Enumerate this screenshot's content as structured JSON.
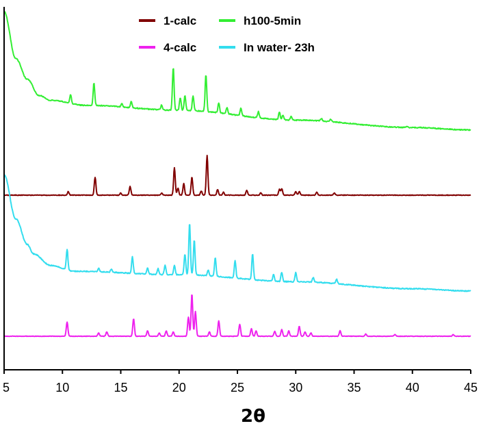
{
  "chart_data": {
    "type": "line",
    "xlabel": "2θ",
    "ylabel": "",
    "xlim": [
      5,
      45
    ],
    "x_ticks": [
      "5",
      "10",
      "15",
      "20",
      "25",
      "30",
      "35",
      "40",
      "45"
    ],
    "y_ticks_shown": false,
    "grid": false,
    "legend_placement": "top-center",
    "legend": [
      {
        "name": "1-calc",
        "color": "#800000"
      },
      {
        "name": "h100-5min",
        "color": "#33ee33"
      },
      {
        "name": "4-calc",
        "color": "#ee22ee"
      },
      {
        "name": "In water- 23h",
        "color": "#33ddee"
      }
    ],
    "series": [
      {
        "name": "h100-5min",
        "color": "#33ee33",
        "note": "offset stacked pattern, top",
        "baseline": [
          [
            5,
            1.0
          ],
          [
            6,
            0.62
          ],
          [
            7,
            0.45
          ],
          [
            8,
            0.32
          ],
          [
            9,
            0.28
          ],
          [
            12,
            0.24
          ],
          [
            20,
            0.2
          ],
          [
            30,
            0.12
          ],
          [
            40,
            0.06
          ],
          [
            45,
            0.04
          ]
        ],
        "peaks": [
          [
            10.7,
            0.07
          ],
          [
            12.7,
            0.18
          ],
          [
            15.1,
            0.03
          ],
          [
            15.9,
            0.05
          ],
          [
            18.5,
            0.04
          ],
          [
            19.5,
            0.35
          ],
          [
            20.1,
            0.1
          ],
          [
            20.5,
            0.12
          ],
          [
            21.2,
            0.12
          ],
          [
            22.3,
            0.3
          ],
          [
            23.4,
            0.08
          ],
          [
            24.1,
            0.05
          ],
          [
            25.3,
            0.06
          ],
          [
            26.8,
            0.05
          ],
          [
            28.6,
            0.06
          ],
          [
            28.9,
            0.04
          ],
          [
            29.6,
            0.03
          ],
          [
            32.2,
            0.02
          ],
          [
            33.0,
            0.02
          ],
          [
            39.5,
            0.01
          ]
        ]
      },
      {
        "name": "1-calc",
        "color": "#800000",
        "note": "calculated pattern",
        "baseline": [
          [
            5,
            0.0
          ],
          [
            45,
            0.0
          ]
        ],
        "peaks": [
          [
            10.5,
            0.05
          ],
          [
            12.8,
            0.25
          ],
          [
            15.0,
            0.03
          ],
          [
            15.8,
            0.12
          ],
          [
            18.5,
            0.03
          ],
          [
            19.6,
            0.38
          ],
          [
            19.9,
            0.1
          ],
          [
            20.4,
            0.16
          ],
          [
            21.1,
            0.25
          ],
          [
            21.9,
            0.06
          ],
          [
            22.4,
            0.55
          ],
          [
            23.3,
            0.08
          ],
          [
            23.8,
            0.04
          ],
          [
            25.8,
            0.07
          ],
          [
            27.0,
            0.03
          ],
          [
            28.6,
            0.08
          ],
          [
            28.8,
            0.09
          ],
          [
            30.0,
            0.05
          ],
          [
            30.3,
            0.05
          ],
          [
            31.8,
            0.04
          ],
          [
            33.3,
            0.03
          ]
        ]
      },
      {
        "name": "In water- 23h",
        "color": "#33ddee",
        "note": "offset stacked pattern",
        "baseline": [
          [
            5,
            1.0
          ],
          [
            6,
            0.62
          ],
          [
            7,
            0.4
          ],
          [
            7.5,
            0.32
          ],
          [
            9,
            0.22
          ],
          [
            11,
            0.17
          ],
          [
            20,
            0.14
          ],
          [
            30,
            0.08
          ],
          [
            40,
            0.02
          ],
          [
            45,
            0.0
          ]
        ],
        "peaks": [
          [
            10.4,
            0.18
          ],
          [
            13.1,
            0.03
          ],
          [
            14.2,
            0.03
          ],
          [
            16.0,
            0.14
          ],
          [
            17.3,
            0.05
          ],
          [
            18.2,
            0.05
          ],
          [
            18.8,
            0.08
          ],
          [
            19.6,
            0.08
          ],
          [
            20.5,
            0.18
          ],
          [
            20.9,
            0.45
          ],
          [
            21.3,
            0.3
          ],
          [
            22.5,
            0.05
          ],
          [
            23.1,
            0.16
          ],
          [
            24.8,
            0.15
          ],
          [
            26.3,
            0.22
          ],
          [
            28.1,
            0.06
          ],
          [
            28.8,
            0.08
          ],
          [
            30.0,
            0.08
          ],
          [
            31.5,
            0.04
          ],
          [
            33.5,
            0.04
          ]
        ]
      },
      {
        "name": "4-calc",
        "color": "#ee22ee",
        "note": "calculated pattern, bottom",
        "baseline": [
          [
            5,
            0.0
          ],
          [
            45,
            0.0
          ]
        ],
        "peaks": [
          [
            10.4,
            0.26
          ],
          [
            13.1,
            0.06
          ],
          [
            13.8,
            0.08
          ],
          [
            16.1,
            0.32
          ],
          [
            17.3,
            0.1
          ],
          [
            18.3,
            0.06
          ],
          [
            18.9,
            0.1
          ],
          [
            19.5,
            0.08
          ],
          [
            20.8,
            0.35
          ],
          [
            21.1,
            0.78
          ],
          [
            21.4,
            0.45
          ],
          [
            22.6,
            0.08
          ],
          [
            23.4,
            0.28
          ],
          [
            25.2,
            0.22
          ],
          [
            26.2,
            0.14
          ],
          [
            26.6,
            0.1
          ],
          [
            28.2,
            0.09
          ],
          [
            28.8,
            0.12
          ],
          [
            29.4,
            0.1
          ],
          [
            30.3,
            0.18
          ],
          [
            30.8,
            0.08
          ],
          [
            31.3,
            0.06
          ],
          [
            33.8,
            0.1
          ],
          [
            36.0,
            0.04
          ],
          [
            38.5,
            0.03
          ],
          [
            43.5,
            0.03
          ]
        ]
      }
    ]
  }
}
